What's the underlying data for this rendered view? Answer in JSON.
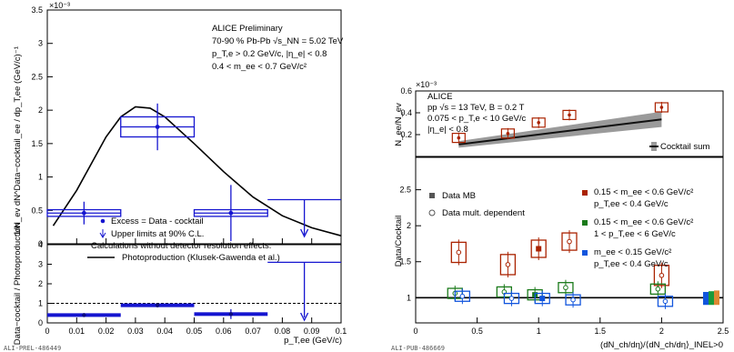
{
  "chart_data": [
    {
      "type": "scatter",
      "panel": "top-left",
      "scale_label": "×10⁻³",
      "ylabel": "1/N_ev dN^Data−cocktail_ee / dp_T,ee (GeV/c)⁻¹",
      "ylim": [
        0,
        0.0035
      ],
      "yticks": [
        0,
        0.5,
        1,
        1.5,
        2,
        2.5,
        3,
        3.5
      ],
      "xlim": [
        0,
        0.1
      ],
      "annotations": [
        "ALICE Preliminary",
        "70-90 % Pb-Pb √s_NN = 5.02 TeV",
        "p_T,e > 0.2 GeV/c, |η_e| < 0.8",
        "0.4 < m_ee < 0.7 GeV/c²"
      ],
      "legend": [
        "Excess = Data - cocktail",
        "Upper limits at 90% C.L.",
        "Calculations without detector resolution effects:",
        "Photoproduction (Klusek-Gawenda et al.)"
      ],
      "series": [
        {
          "name": "Excess = Data - cocktail",
          "x": [
            0.0125,
            0.0375,
            0.0625
          ],
          "xerr": [
            0.0125,
            0.0125,
            0.0125
          ],
          "y": [
            0.00046,
            0.00175,
            0.00046
          ],
          "yerr": [
            0.00017,
            0.00035,
            0.00042
          ],
          "syst": [
            5e-05,
            0.00015,
            5e-05
          ]
        },
        {
          "name": "Upper limits at 90% C.L.",
          "x": [
            0.0875
          ],
          "xerr": [
            0.0125
          ],
          "y": [
            0.00066
          ]
        },
        {
          "name": "Photoproduction (Klusek-Gawenda et al.)",
          "x": [
            0.002,
            0.01,
            0.02,
            0.025,
            0.03,
            0.035,
            0.04,
            0.05,
            0.06,
            0.07,
            0.08,
            0.09,
            0.1
          ],
          "y": [
            0.00027,
            0.0008,
            0.0016,
            0.0019,
            0.00205,
            0.00203,
            0.0019,
            0.0015,
            0.00108,
            0.0007,
            0.00042,
            0.00024,
            0.00012
          ]
        }
      ]
    },
    {
      "type": "scatter",
      "panel": "bottom-left",
      "ylabel": "Data−cocktail / Photoproduction",
      "xlabel": "p_T,ee (GeV/c)",
      "xlim": [
        0,
        0.1
      ],
      "ylim": [
        0,
        4
      ],
      "xticks": [
        "0",
        "0.01",
        "0.02",
        "0.03",
        "0.04",
        "0.05",
        "0.06",
        "0.07",
        "0.08",
        "0.09",
        "0.1"
      ],
      "yticks": [
        0,
        1,
        2,
        3,
        4
      ],
      "reference_line": 1,
      "series": [
        {
          "name": "ratio",
          "x": [
            0.0125,
            0.0375,
            0.0625
          ],
          "xerr": [
            0.0125,
            0.0125,
            0.0125
          ],
          "y": [
            0.4,
            0.9,
            0.45
          ],
          "yerr": [
            0.1,
            0.1,
            0.25
          ]
        },
        {
          "name": "upper limit",
          "x": [
            0.0875
          ],
          "xerr": [
            0.0125
          ],
          "y": [
            3.1
          ]
        }
      ]
    },
    {
      "type": "scatter",
      "panel": "top-right",
      "scale_label": "×10⁻³",
      "ylabel": "N_ee/N_ev",
      "ylim": [
        0,
        0.0006
      ],
      "yticks": [
        0.2,
        0.4,
        0.6
      ],
      "xlim": [
        0,
        2.5
      ],
      "annotations": [
        "ALICE",
        "pp √s = 13 TeV, B = 0.2 T",
        "0.075 < p_T,e < 10 GeV/c",
        "|η_e| < 0.8"
      ],
      "legend": [
        "Cocktail sum"
      ],
      "series": [
        {
          "name": "data",
          "x": [
            0.35,
            0.75,
            1.0,
            1.25,
            2.0
          ],
          "y": [
            0.00017,
            0.00021,
            0.00031,
            0.00038,
            0.00045
          ],
          "color": "#aa2200"
        },
        {
          "name": "Cocktail sum",
          "x": [
            0.35,
            2.0
          ],
          "y": [
            0.00011,
            0.00034
          ],
          "band": [
            3e-05,
            7e-05
          ]
        }
      ]
    },
    {
      "type": "scatter",
      "panel": "bottom-right",
      "ylabel": "Data/Cocktail",
      "xlabel": "(dN_ch/dη)/⟨dN_ch/dη⟩_INEL>0",
      "xlim": [
        0,
        2.5
      ],
      "ylim": [
        0.65,
        2.95
      ],
      "xticks": [
        "0",
        "0.5",
        "1",
        "1.5",
        "2",
        "2.5"
      ],
      "yticks": [
        "1",
        "1.5",
        "2",
        "2.5"
      ],
      "reference_line": 1,
      "legend": [
        "Data MB",
        "Data mult. dependent",
        "0.15 < m_ee < 0.6 GeV/c²",
        "p_T,ee < 0.4 GeV/c",
        "0.15 < m_ee < 0.6 GeV/c²",
        "1 < p_T,ee < 6 GeV/c",
        "m_ee < 0.15 GeV/c²",
        "p_T,ee < 0.4 GeV/c"
      ],
      "series": [
        {
          "name": "0.15 < m_ee < 0.6 GeV/c², p_T,ee < 0.4 GeV/c",
          "color": "#aa2200",
          "x": [
            0.35,
            0.75,
            1.0,
            1.25,
            2.0
          ],
          "y": [
            1.63,
            1.46,
            1.68,
            1.78,
            1.31
          ],
          "syst": [
            0.14,
            0.14,
            0.12,
            0.12,
            0.14
          ],
          "mb": 2
        },
        {
          "name": "0.15 < m_ee < 0.6 GeV/c², 1 < p_T,ee < 6 GeV/c",
          "color": "#1a7a1a",
          "x": [
            0.32,
            0.72,
            0.97,
            1.22,
            1.97
          ],
          "y": [
            1.06,
            1.08,
            1.04,
            1.14,
            1.12
          ],
          "syst": [
            0.07,
            0.07,
            0.07,
            0.07,
            0.07
          ],
          "mb": 2
        },
        {
          "name": "m_ee < 0.15 GeV/c², p_T,ee < 0.4 GeV/c",
          "color": "#1155dd",
          "x": [
            0.38,
            0.78,
            1.03,
            1.28,
            2.03
          ],
          "y": [
            1.02,
            0.99,
            0.99,
            0.97,
            0.95
          ],
          "syst": [
            0.07,
            0.07,
            0.07,
            0.07,
            0.07
          ],
          "mb": 2
        }
      ]
    }
  ],
  "footer": {
    "left": "ALI-PREL-486449",
    "right": "ALI-PUB-486669"
  }
}
